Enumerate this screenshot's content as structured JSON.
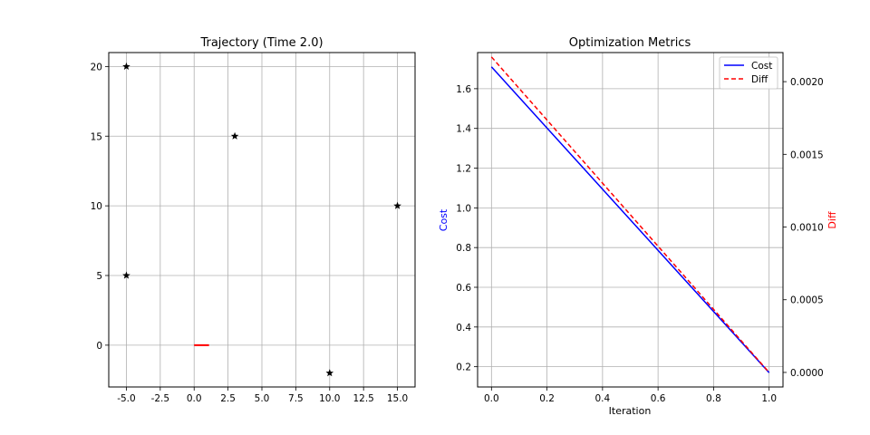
{
  "chart_data": [
    {
      "type": "scatter",
      "title": "Trajectory (Time 2.0)",
      "xlabel": "",
      "ylabel": "",
      "xlim": [
        -6.3,
        16.3
      ],
      "ylim": [
        -3.0,
        21.0
      ],
      "xticks": [
        -5.0,
        -2.5,
        0.0,
        2.5,
        5.0,
        7.5,
        10.0,
        12.5,
        15.0
      ],
      "xtick_labels": [
        "-5.0",
        "-2.5",
        "0.0",
        "2.5",
        "5.0",
        "7.5",
        "10.0",
        "12.5",
        "15.0"
      ],
      "yticks": [
        0,
        5,
        10,
        15,
        20
      ],
      "ytick_labels": [
        "0",
        "5",
        "10",
        "15",
        "20"
      ],
      "grid": true,
      "points": [
        {
          "x": -5,
          "y": 20
        },
        {
          "x": 3,
          "y": 15
        },
        {
          "x": 15,
          "y": 10
        },
        {
          "x": -5,
          "y": 5
        },
        {
          "x": 10,
          "y": -2
        }
      ],
      "point_marker": "star",
      "point_color": "#000000",
      "trajectory": {
        "x": [
          0.0,
          1.1
        ],
        "y": [
          0.0,
          0.0
        ],
        "color": "#ff0000"
      }
    },
    {
      "type": "line",
      "title": "Optimization Metrics",
      "xlabel": "Iteration",
      "ylabel": "Cost",
      "ylabel_color": "#0000ff",
      "y2label": "Diff",
      "y2label_color": "#ff0000",
      "xlim": [
        -0.05,
        1.05
      ],
      "ylim": [
        0.098,
        1.782
      ],
      "y2lim": [
        -0.0001,
        0.0022
      ],
      "xticks": [
        0.0,
        0.2,
        0.4,
        0.6,
        0.8,
        1.0
      ],
      "xtick_labels": [
        "0.0",
        "0.2",
        "0.4",
        "0.6",
        "0.8",
        "1.0"
      ],
      "yticks": [
        0.2,
        0.4,
        0.6,
        0.8,
        1.0,
        1.2,
        1.4,
        1.6
      ],
      "ytick_labels": [
        "0.2",
        "0.4",
        "0.6",
        "0.8",
        "1.0",
        "1.2",
        "1.4",
        "1.6"
      ],
      "y2ticks": [
        0.0,
        0.0005,
        0.001,
        0.0015,
        0.002
      ],
      "y2tick_labels": [
        "0.0000",
        "0.0005",
        "0.0010",
        "0.0015",
        "0.0020"
      ],
      "grid": true,
      "legend_position": "top-right",
      "series": [
        {
          "name": "Cost",
          "axis": "left",
          "x": [
            0,
            1
          ],
          "y": [
            1.71,
            0.17
          ],
          "color": "#0000ff",
          "dash": "solid"
        },
        {
          "name": "Diff",
          "axis": "right",
          "x": [
            0,
            1
          ],
          "y": [
            0.00217,
            0.0
          ],
          "color": "#ff0000",
          "dash": "dashed"
        }
      ]
    }
  ]
}
